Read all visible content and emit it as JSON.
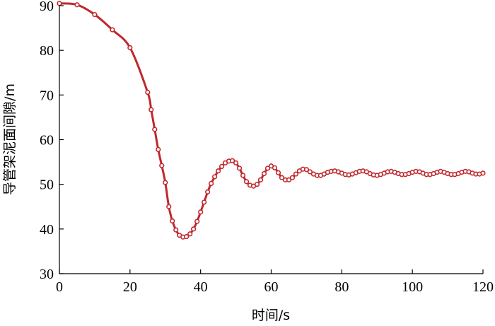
{
  "chart_data": {
    "type": "line",
    "title": "",
    "xlabel": "时间/s",
    "ylabel": "导管架泥面间隙/m",
    "xlim": [
      0,
      120
    ],
    "ylim": [
      30,
      90
    ],
    "xticks": [
      0,
      20,
      40,
      60,
      80,
      100,
      120
    ],
    "yticks": [
      30,
      40,
      50,
      60,
      70,
      80,
      90
    ],
    "xtick_labels": [
      "0",
      "20",
      "40",
      "60",
      "80",
      "100",
      "120"
    ],
    "ytick_labels": [
      "30",
      "40",
      "50",
      "60",
      "70",
      "80",
      "90"
    ],
    "grid": false,
    "legend": "none",
    "line_color": "#c0282d",
    "marker": "circle-open",
    "series": [
      {
        "x": [
          0,
          5,
          10,
          15,
          20,
          25,
          26,
          27,
          28,
          29,
          30,
          31,
          32,
          33,
          34,
          35,
          36,
          37,
          38,
          39,
          40,
          41,
          42,
          43,
          44,
          45,
          46,
          47,
          48,
          49,
          50,
          51,
          52,
          53,
          54,
          55,
          56,
          57,
          58,
          59,
          60,
          61,
          62,
          63,
          64,
          65,
          66,
          67,
          68,
          69,
          70,
          71,
          72,
          73,
          74,
          75,
          76,
          77,
          78,
          79,
          80,
          81,
          82,
          83,
          84,
          85,
          86,
          87,
          88,
          89,
          90,
          91,
          92,
          93,
          94,
          95,
          96,
          97,
          98,
          99,
          100,
          101,
          102,
          103,
          104,
          105,
          106,
          107,
          108,
          109,
          110,
          111,
          112,
          113,
          114,
          115,
          116,
          117,
          118,
          119,
          120
        ],
        "y": [
          90.5,
          90.2,
          88.0,
          84.6,
          80.6,
          70.6,
          66.7,
          62.3,
          57.8,
          54.2,
          50.4,
          45.0,
          41.8,
          39.8,
          38.6,
          38.2,
          38.3,
          38.9,
          40.0,
          41.7,
          43.8,
          46.0,
          48.3,
          50.2,
          51.7,
          53.0,
          54.0,
          54.8,
          55.2,
          55.3,
          54.8,
          53.6,
          52.0,
          50.6,
          49.8,
          49.6,
          50.0,
          51.0,
          52.4,
          53.6,
          54.1,
          53.7,
          52.6,
          51.5,
          51.0,
          51.0,
          51.5,
          52.3,
          53.0,
          53.4,
          53.3,
          52.8,
          52.3,
          52.0,
          52.0,
          52.3,
          52.7,
          52.9,
          53.0,
          52.8,
          52.5,
          52.2,
          52.1,
          52.3,
          52.6,
          52.9,
          53.0,
          52.8,
          52.4,
          52.1,
          52.0,
          52.2,
          52.5,
          52.8,
          52.9,
          52.7,
          52.4,
          52.2,
          52.2,
          52.4,
          52.7,
          52.9,
          52.8,
          52.5,
          52.2,
          52.2,
          52.4,
          52.7,
          52.9,
          52.7,
          52.4,
          52.2,
          52.2,
          52.4,
          52.7,
          52.9,
          52.8,
          52.5,
          52.3,
          52.3,
          52.5
        ]
      }
    ]
  }
}
